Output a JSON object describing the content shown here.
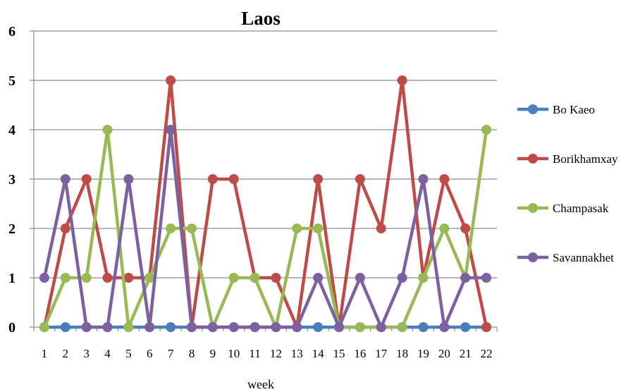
{
  "chart_data": {
    "type": "line",
    "title": "Laos",
    "xlabel": "week",
    "ylabel": "",
    "ylim": [
      0,
      6
    ],
    "yticks": [
      "0",
      "1",
      "2",
      "3",
      "4",
      "5",
      "6"
    ],
    "categories": [
      "1",
      "2",
      "3",
      "4",
      "5",
      "6",
      "7",
      "8",
      "9",
      "10",
      "11",
      "12",
      "13",
      "14",
      "15",
      "16",
      "17",
      "18",
      "19",
      "20",
      "21",
      "22"
    ],
    "grid": "horizontal",
    "legend_position": "right",
    "series": [
      {
        "name": "Bo Kaeo",
        "color": "#4a7ebb",
        "values": [
          0,
          0,
          0,
          0,
          0,
          0,
          0,
          0,
          0,
          0,
          0,
          0,
          0,
          0,
          0,
          0,
          0,
          0,
          0,
          0,
          0,
          0
        ]
      },
      {
        "name": "Borikhamxay",
        "color": "#be4b48",
        "values": [
          0,
          2,
          3,
          1,
          1,
          1,
          5,
          0,
          3,
          3,
          1,
          1,
          0,
          3,
          0,
          3,
          2,
          5,
          1,
          3,
          2,
          0
        ]
      },
      {
        "name": "Champasak",
        "color": "#98b954",
        "values": [
          0,
          1,
          1,
          4,
          0,
          1,
          2,
          2,
          0,
          1,
          1,
          0,
          2,
          2,
          0,
          0,
          0,
          0,
          1,
          2,
          1,
          4
        ]
      },
      {
        "name": "Savannakhet",
        "color": "#7d60a0",
        "values": [
          1,
          3,
          0,
          0,
          3,
          0,
          4,
          0,
          0,
          0,
          0,
          0,
          0,
          1,
          0,
          1,
          0,
          1,
          3,
          0,
          1,
          1
        ]
      }
    ]
  }
}
